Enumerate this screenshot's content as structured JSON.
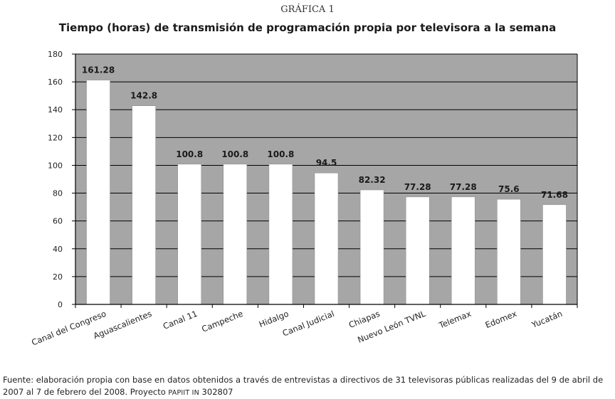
{
  "figure_label": "GRÁFICA 1",
  "source": {
    "text_before": "Fuente: elaboración propia con base en datos obtenidos a través de entrevistas a directivos de 31 televisoras públicas realizadas del 9 de abril de 2007 al 7 de febrero del 2008. Proyecto ",
    "small_caps": "PAPIIT IN",
    "text_after": " 302807"
  },
  "colors": {
    "plot_background": "#a6a6a6",
    "bar_fill": "#ffffff",
    "gridline": "#000000"
  },
  "chart_data": {
    "type": "bar",
    "title": "Tiempo (horas) de transmisión de programación propia por televisora a la semana",
    "xlabel": "",
    "ylabel": "",
    "categories": [
      "Canal del Congreso",
      "Aguascalientes",
      "Canal 11",
      "Campeche",
      "Hidalgo",
      "Canal Judicial",
      "Chiapas",
      "Nuevo León TVNL",
      "Telemax",
      "Edomex",
      "Yucatán"
    ],
    "values": [
      161.28,
      142.8,
      100.8,
      100.8,
      100.8,
      94.5,
      82.32,
      77.28,
      77.28,
      75.6,
      71.68
    ],
    "data_labels": [
      "161.28",
      "142.8",
      "100.8",
      "100.8",
      "100.8",
      "94.5",
      "82.32",
      "77.28",
      "77.28",
      "75.6",
      "71.68"
    ],
    "ylim": [
      0,
      180
    ],
    "yticks": [
      0,
      20,
      40,
      60,
      80,
      100,
      120,
      140,
      160,
      180
    ],
    "grid": true,
    "legend": "none"
  }
}
